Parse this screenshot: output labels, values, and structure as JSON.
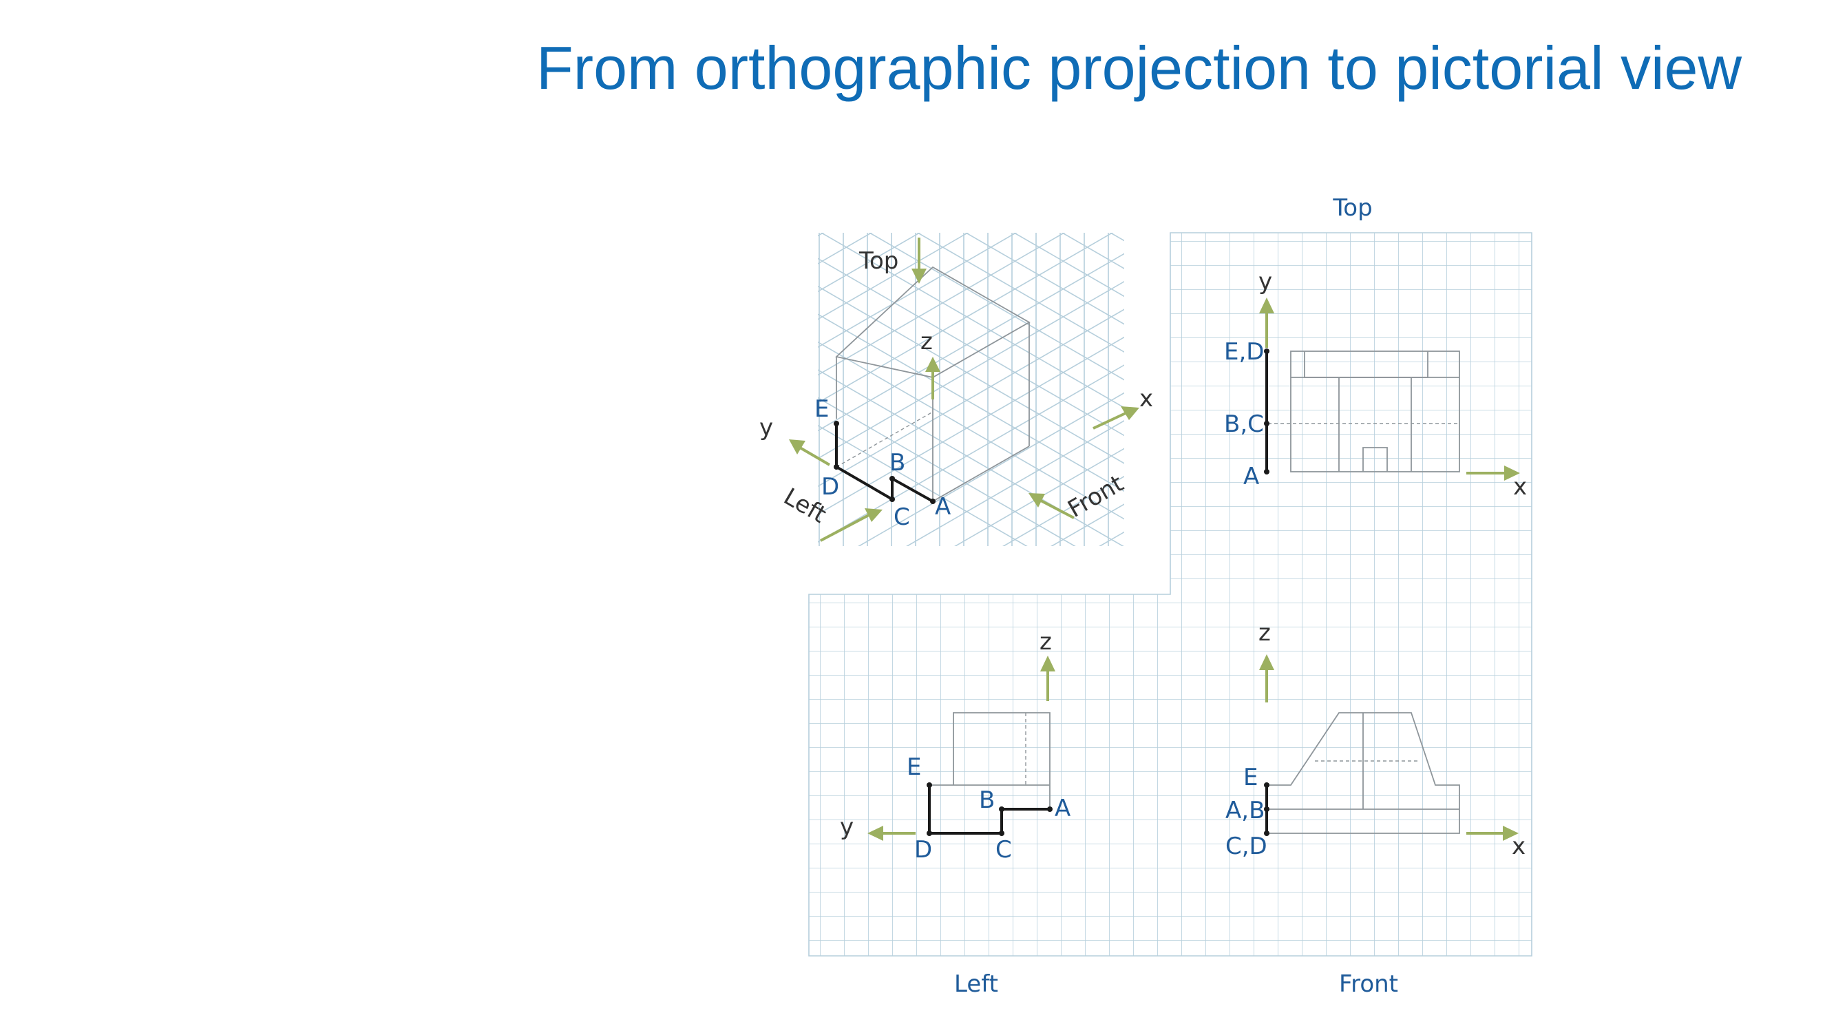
{
  "title": "From orthographic projection to pictorial view",
  "views": {
    "top": "Top",
    "left": "Left",
    "front": "Front"
  },
  "iso": {
    "top": "Top",
    "left": "Left",
    "front": "Front",
    "axes": {
      "x": "x",
      "y": "y",
      "z": "z"
    },
    "points": {
      "A": "A",
      "B": "B",
      "C": "C",
      "D": "D",
      "E": "E"
    }
  },
  "top_view": {
    "axes": {
      "x": "x",
      "y": "y"
    },
    "labels": {
      "ed": "E,D",
      "bc": "B,C",
      "a": "A"
    }
  },
  "left_view": {
    "axes": {
      "y": "y",
      "z": "z"
    },
    "labels": {
      "e": "E",
      "b": "B",
      "a": "A",
      "d": "D",
      "c": "C"
    }
  },
  "front_view": {
    "axes": {
      "x": "x",
      "z": "z"
    },
    "labels": {
      "e": "E",
      "ab": "A,B",
      "cd": "C,D"
    }
  },
  "colors": {
    "title": "#0f6cb6",
    "labels": "#1f5b9a",
    "grid": "#b6cfdc",
    "axis_arrows": "#9cb060"
  }
}
